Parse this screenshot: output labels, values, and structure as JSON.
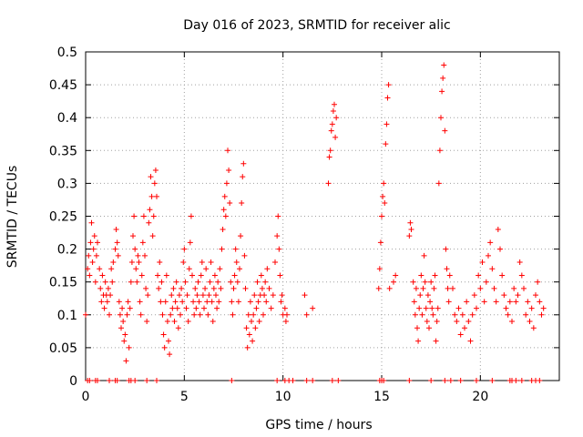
{
  "chart_data": {
    "type": "scatter",
    "title": "Day 016 of 2023, SRMTID for receiver alic",
    "xlabel": "GPS time / hours",
    "ylabel": "SRMTID / TECUs",
    "xlim": [
      0,
      24
    ],
    "ylim": [
      0,
      0.5
    ],
    "xticks": [
      0,
      5,
      10,
      15,
      20
    ],
    "xtick_labels": [
      "0",
      "5",
      "10",
      "15",
      "20"
    ],
    "yticks": [
      0,
      0.05,
      0.1,
      0.15,
      0.2,
      0.25,
      0.3,
      0.35,
      0.4,
      0.45,
      0.5
    ],
    "ytick_labels": [
      "0",
      "0.05",
      "0.1",
      "0.15",
      "0.2",
      "0.25",
      "0.3",
      "0.35",
      "0.4",
      "0.45",
      "0.5"
    ],
    "grid": true,
    "marker": "+",
    "marker_color": "#ff0000",
    "series": [
      {
        "points": [
          [
            0.0,
            0.1
          ],
          [
            0.1,
            0.17
          ],
          [
            0.15,
            0.19
          ],
          [
            0.2,
            0.16
          ],
          [
            0.25,
            0.21
          ],
          [
            0.3,
            0.24
          ],
          [
            0.35,
            0.18
          ],
          [
            0.4,
            0.2
          ],
          [
            0.45,
            0.22
          ],
          [
            0.5,
            0.15
          ],
          [
            0.55,
            0.19
          ],
          [
            0.6,
            0.21
          ],
          [
            0.7,
            0.17
          ],
          [
            0.75,
            0.14
          ],
          [
            0.8,
            0.12
          ],
          [
            0.85,
            0.16
          ],
          [
            0.9,
            0.13
          ],
          [
            0.95,
            0.11
          ],
          [
            1.0,
            0.15
          ],
          [
            1.05,
            0.13
          ],
          [
            1.1,
            0.12
          ],
          [
            1.15,
            0.14
          ],
          [
            1.2,
            0.1
          ],
          [
            1.25,
            0.13
          ],
          [
            1.3,
            0.17
          ],
          [
            1.35,
            0.15
          ],
          [
            1.4,
            0.18
          ],
          [
            1.5,
            0.2
          ],
          [
            1.55,
            0.23
          ],
          [
            1.6,
            0.21
          ],
          [
            1.65,
            0.19
          ],
          [
            1.7,
            0.12
          ],
          [
            1.75,
            0.1
          ],
          [
            1.8,
            0.08
          ],
          [
            1.85,
            0.11
          ],
          [
            1.9,
            0.09
          ],
          [
            1.95,
            0.06
          ],
          [
            2.0,
            0.07
          ],
          [
            2.05,
            0.03
          ],
          [
            2.1,
            0.1
          ],
          [
            2.15,
            0.12
          ],
          [
            2.2,
            0.05
          ],
          [
            2.25,
            0.11
          ],
          [
            2.3,
            0.15
          ],
          [
            2.35,
            0.18
          ],
          [
            2.4,
            0.22
          ],
          [
            2.45,
            0.25
          ],
          [
            2.5,
            0.2
          ],
          [
            2.55,
            0.17
          ],
          [
            2.6,
            0.15
          ],
          [
            2.65,
            0.19
          ],
          [
            2.7,
            0.18
          ],
          [
            2.75,
            0.12
          ],
          [
            2.8,
            0.1
          ],
          [
            2.85,
            0.16
          ],
          [
            2.9,
            0.21
          ],
          [
            2.95,
            0.25
          ],
          [
            3.0,
            0.19
          ],
          [
            3.05,
            0.14
          ],
          [
            3.1,
            0.09
          ],
          [
            3.15,
            0.13
          ],
          [
            3.2,
            0.24
          ],
          [
            3.25,
            0.26
          ],
          [
            3.3,
            0.31
          ],
          [
            3.35,
            0.28
          ],
          [
            3.4,
            0.22
          ],
          [
            3.45,
            0.25
          ],
          [
            3.5,
            0.3
          ],
          [
            3.55,
            0.32
          ],
          [
            3.6,
            0.28
          ],
          [
            3.65,
            0.16
          ],
          [
            3.7,
            0.14
          ],
          [
            3.75,
            0.18
          ],
          [
            3.8,
            0.12
          ],
          [
            3.85,
            0.15
          ],
          [
            3.9,
            0.1
          ],
          [
            3.95,
            0.07
          ],
          [
            4.0,
            0.05
          ],
          [
            4.05,
            0.12
          ],
          [
            4.1,
            0.16
          ],
          [
            4.15,
            0.09
          ],
          [
            4.2,
            0.06
          ],
          [
            4.25,
            0.04
          ],
          [
            4.3,
            0.1
          ],
          [
            4.35,
            0.13
          ],
          [
            4.4,
            0.11
          ],
          [
            4.45,
            0.14
          ],
          [
            4.5,
            0.09
          ],
          [
            4.55,
            0.12
          ],
          [
            4.6,
            0.15
          ],
          [
            4.65,
            0.11
          ],
          [
            4.7,
            0.08
          ],
          [
            4.75,
            0.13
          ],
          [
            4.8,
            0.1
          ],
          [
            4.85,
            0.14
          ],
          [
            4.9,
            0.12
          ],
          [
            4.95,
            0.18
          ],
          [
            5.0,
            0.2
          ],
          [
            5.05,
            0.15
          ],
          [
            5.1,
            0.11
          ],
          [
            5.15,
            0.13
          ],
          [
            5.2,
            0.09
          ],
          [
            5.25,
            0.17
          ],
          [
            5.3,
            0.21
          ],
          [
            5.35,
            0.25
          ],
          [
            5.4,
            0.16
          ],
          [
            5.45,
            0.12
          ],
          [
            5.5,
            0.1
          ],
          [
            5.55,
            0.14
          ],
          [
            5.6,
            0.11
          ],
          [
            5.65,
            0.13
          ],
          [
            5.7,
            0.15
          ],
          [
            5.75,
            0.12
          ],
          [
            5.8,
            0.1
          ],
          [
            5.85,
            0.16
          ],
          [
            5.9,
            0.18
          ],
          [
            5.95,
            0.13
          ],
          [
            6.0,
            0.11
          ],
          [
            6.05,
            0.14
          ],
          [
            6.1,
            0.17
          ],
          [
            6.15,
            0.12
          ],
          [
            6.2,
            0.1
          ],
          [
            6.25,
            0.13
          ],
          [
            6.3,
            0.15
          ],
          [
            6.35,
            0.18
          ],
          [
            6.4,
            0.12
          ],
          [
            6.45,
            0.09
          ],
          [
            6.5,
            0.14
          ],
          [
            6.55,
            0.16
          ],
          [
            6.6,
            0.13
          ],
          [
            6.65,
            0.11
          ],
          [
            6.7,
            0.15
          ],
          [
            6.75,
            0.12
          ],
          [
            6.8,
            0.17
          ],
          [
            6.85,
            0.14
          ],
          [
            6.9,
            0.2
          ],
          [
            6.95,
            0.23
          ],
          [
            7.0,
            0.26
          ],
          [
            7.05,
            0.28
          ],
          [
            7.1,
            0.25
          ],
          [
            7.15,
            0.3
          ],
          [
            7.2,
            0.35
          ],
          [
            7.25,
            0.32
          ],
          [
            7.3,
            0.27
          ],
          [
            7.35,
            0.15
          ],
          [
            7.4,
            0.12
          ],
          [
            7.45,
            0.1
          ],
          [
            7.5,
            0.14
          ],
          [
            7.55,
            0.16
          ],
          [
            7.6,
            0.2
          ],
          [
            7.65,
            0.18
          ],
          [
            7.7,
            0.15
          ],
          [
            7.75,
            0.12
          ],
          [
            7.8,
            0.17
          ],
          [
            7.85,
            0.22
          ],
          [
            7.9,
            0.27
          ],
          [
            7.95,
            0.31
          ],
          [
            8.0,
            0.33
          ],
          [
            8.05,
            0.19
          ],
          [
            8.1,
            0.14
          ],
          [
            8.15,
            0.08
          ],
          [
            8.2,
            0.05
          ],
          [
            8.25,
            0.1
          ],
          [
            8.3,
            0.07
          ],
          [
            8.35,
            0.12
          ],
          [
            8.4,
            0.09
          ],
          [
            8.45,
            0.06
          ],
          [
            8.5,
            0.1
          ],
          [
            8.55,
            0.13
          ],
          [
            8.6,
            0.08
          ],
          [
            8.65,
            0.11
          ],
          [
            8.7,
            0.15
          ],
          [
            8.75,
            0.12
          ],
          [
            8.8,
            0.09
          ],
          [
            8.85,
            0.13
          ],
          [
            8.9,
            0.16
          ],
          [
            8.95,
            0.14
          ],
          [
            9.0,
            0.1
          ],
          [
            9.05,
            0.13
          ],
          [
            9.1,
            0.15
          ],
          [
            9.15,
            0.12
          ],
          [
            9.2,
            0.17
          ],
          [
            9.3,
            0.14
          ],
          [
            9.4,
            0.11
          ],
          [
            9.5,
            0.13
          ],
          [
            9.6,
            0.18
          ],
          [
            9.7,
            0.22
          ],
          [
            9.75,
            0.25
          ],
          [
            9.8,
            0.2
          ],
          [
            9.85,
            0.16
          ],
          [
            9.9,
            0.12
          ],
          [
            9.95,
            0.13
          ],
          [
            10.0,
            0.1
          ],
          [
            10.1,
            0.11
          ],
          [
            10.15,
            0.09
          ],
          [
            10.2,
            0.1
          ],
          [
            11.1,
            0.13
          ],
          [
            11.2,
            0.1
          ],
          [
            11.5,
            0.11
          ],
          [
            12.3,
            0.3
          ],
          [
            12.35,
            0.34
          ],
          [
            12.4,
            0.35
          ],
          [
            12.45,
            0.38
          ],
          [
            12.5,
            0.39
          ],
          [
            12.55,
            0.41
          ],
          [
            12.6,
            0.42
          ],
          [
            12.65,
            0.37
          ],
          [
            12.7,
            0.4
          ],
          [
            14.85,
            0.14
          ],
          [
            14.9,
            0.17
          ],
          [
            14.95,
            0.21
          ],
          [
            15.0,
            0.25
          ],
          [
            15.05,
            0.28
          ],
          [
            15.1,
            0.3
          ],
          [
            15.15,
            0.27
          ],
          [
            15.2,
            0.36
          ],
          [
            15.25,
            0.39
          ],
          [
            15.3,
            0.43
          ],
          [
            15.35,
            0.45
          ],
          [
            15.4,
            0.14
          ],
          [
            15.6,
            0.15
          ],
          [
            15.7,
            0.16
          ],
          [
            16.4,
            0.22
          ],
          [
            16.45,
            0.24
          ],
          [
            16.5,
            0.23
          ],
          [
            16.6,
            0.15
          ],
          [
            16.65,
            0.12
          ],
          [
            16.7,
            0.1
          ],
          [
            16.75,
            0.14
          ],
          [
            16.8,
            0.08
          ],
          [
            16.85,
            0.06
          ],
          [
            16.9,
            0.11
          ],
          [
            16.95,
            0.13
          ],
          [
            17.0,
            0.16
          ],
          [
            17.05,
            0.1
          ],
          [
            17.1,
            0.14
          ],
          [
            17.15,
            0.19
          ],
          [
            17.2,
            0.15
          ],
          [
            17.25,
            0.11
          ],
          [
            17.3,
            0.09
          ],
          [
            17.35,
            0.13
          ],
          [
            17.4,
            0.08
          ],
          [
            17.45,
            0.12
          ],
          [
            17.5,
            0.15
          ],
          [
            17.55,
            0.11
          ],
          [
            17.6,
            0.1
          ],
          [
            17.65,
            0.14
          ],
          [
            17.7,
            0.16
          ],
          [
            17.75,
            0.06
          ],
          [
            17.8,
            0.09
          ],
          [
            17.85,
            0.11
          ],
          [
            17.9,
            0.3
          ],
          [
            17.95,
            0.35
          ],
          [
            18.0,
            0.4
          ],
          [
            18.05,
            0.44
          ],
          [
            18.1,
            0.46
          ],
          [
            18.15,
            0.48
          ],
          [
            18.2,
            0.38
          ],
          [
            18.25,
            0.2
          ],
          [
            18.3,
            0.17
          ],
          [
            18.35,
            0.14
          ],
          [
            18.4,
            0.12
          ],
          [
            18.45,
            0.16
          ],
          [
            18.6,
            0.14
          ],
          [
            18.7,
            0.1
          ],
          [
            18.8,
            0.09
          ],
          [
            18.9,
            0.11
          ],
          [
            19.0,
            0.07
          ],
          [
            19.1,
            0.1
          ],
          [
            19.2,
            0.08
          ],
          [
            19.3,
            0.12
          ],
          [
            19.4,
            0.09
          ],
          [
            19.5,
            0.06
          ],
          [
            19.6,
            0.1
          ],
          [
            19.7,
            0.13
          ],
          [
            19.8,
            0.11
          ],
          [
            19.9,
            0.16
          ],
          [
            20.0,
            0.14
          ],
          [
            20.1,
            0.18
          ],
          [
            20.2,
            0.12
          ],
          [
            20.3,
            0.15
          ],
          [
            20.4,
            0.19
          ],
          [
            20.5,
            0.21
          ],
          [
            20.6,
            0.17
          ],
          [
            20.7,
            0.14
          ],
          [
            20.8,
            0.12
          ],
          [
            20.9,
            0.23
          ],
          [
            21.0,
            0.2
          ],
          [
            21.1,
            0.16
          ],
          [
            21.2,
            0.13
          ],
          [
            21.3,
            0.11
          ],
          [
            21.4,
            0.1
          ],
          [
            21.5,
            0.12
          ],
          [
            21.6,
            0.09
          ],
          [
            21.7,
            0.14
          ],
          [
            21.8,
            0.12
          ],
          [
            21.9,
            0.13
          ],
          [
            22.0,
            0.18
          ],
          [
            22.1,
            0.16
          ],
          [
            22.2,
            0.14
          ],
          [
            22.3,
            0.1
          ],
          [
            22.4,
            0.12
          ],
          [
            22.5,
            0.09
          ],
          [
            22.6,
            0.11
          ],
          [
            22.7,
            0.08
          ],
          [
            22.8,
            0.13
          ],
          [
            22.9,
            0.15
          ],
          [
            23.0,
            0.12
          ],
          [
            23.1,
            0.1
          ],
          [
            23.2,
            0.11
          ]
        ],
        "zero_x": [
          0.1,
          0.2,
          0.5,
          0.6,
          1.2,
          1.5,
          1.6,
          2.2,
          2.3,
          2.5,
          3.1,
          3.6,
          7.4,
          9.7,
          10.1,
          10.3,
          10.5,
          11.2,
          11.5,
          12.5,
          12.8,
          14.9,
          15.0,
          15.1,
          16.4,
          17.5,
          18.2,
          18.5,
          19.0,
          19.8,
          20.6,
          21.5,
          21.6,
          21.8,
          22.1,
          22.6,
          22.8,
          23.0
        ]
      }
    ]
  }
}
